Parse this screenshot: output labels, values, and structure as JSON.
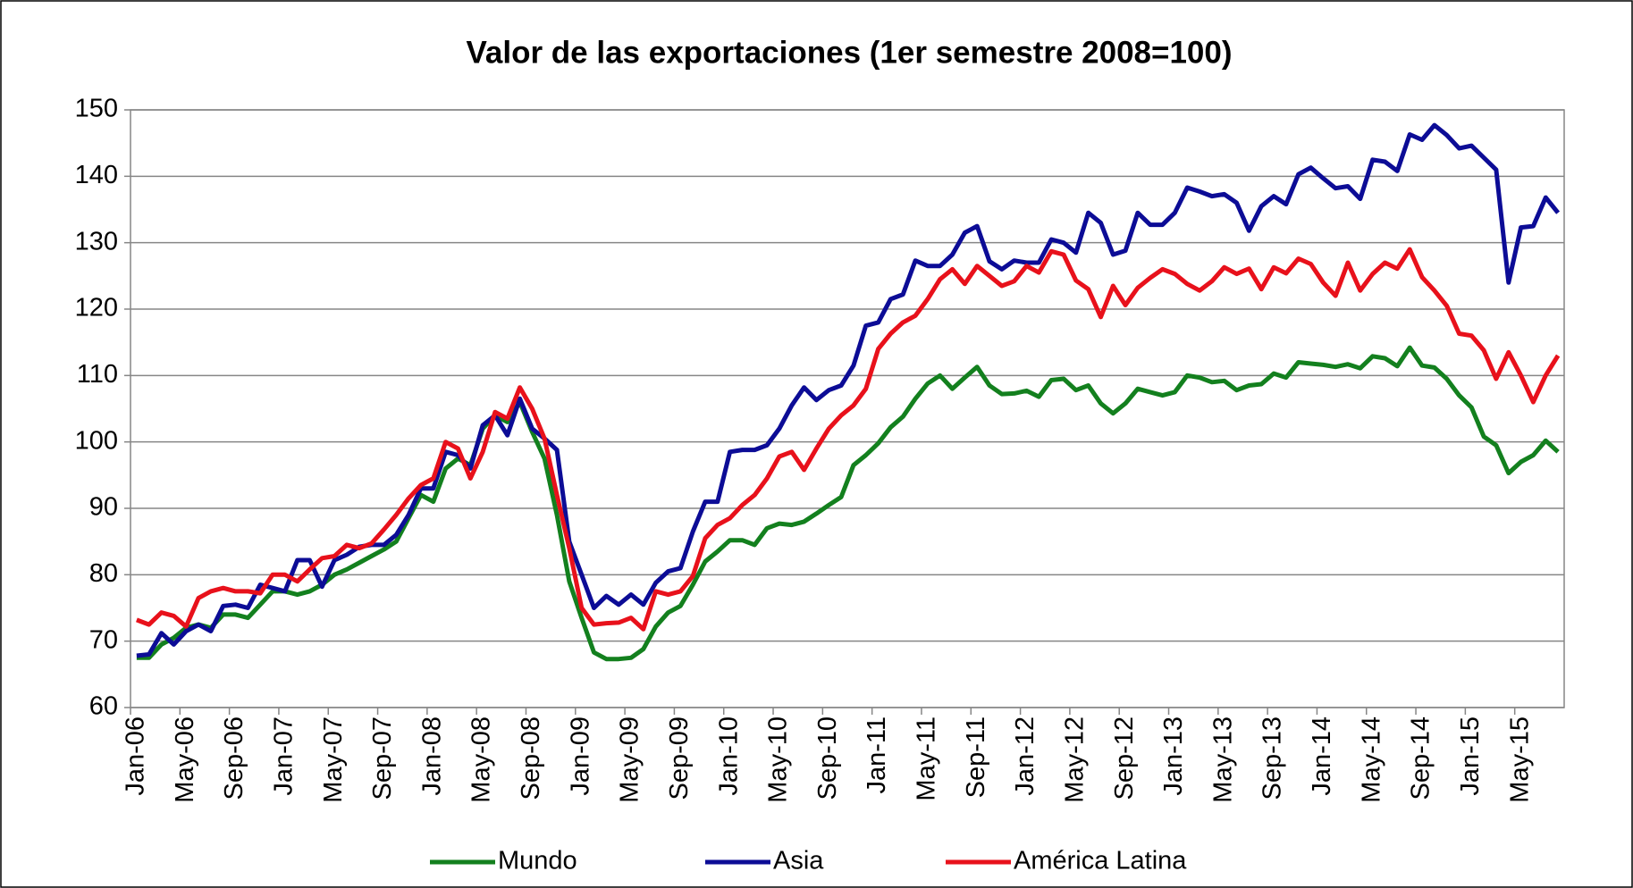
{
  "chart_data": {
    "type": "line",
    "title": "Valor de las exportaciones (1er semestre 2008=100)",
    "categories": [
      "Jan-06",
      null,
      null,
      null,
      "May-06",
      null,
      null,
      null,
      "Sep-06",
      null,
      null,
      null,
      "Jan-07",
      null,
      null,
      null,
      "May-07",
      null,
      null,
      null,
      "Sep-07",
      null,
      null,
      null,
      "Jan-08",
      null,
      null,
      null,
      "May-08",
      null,
      null,
      null,
      "Sep-08",
      null,
      null,
      null,
      "Jan-09",
      null,
      null,
      null,
      "May-09",
      null,
      null,
      null,
      "Sep-09",
      null,
      null,
      null,
      "Jan-10",
      null,
      null,
      null,
      "May-10",
      null,
      null,
      null,
      "Sep-10",
      null,
      null,
      null,
      "Jan-11",
      null,
      null,
      null,
      "May-11",
      null,
      null,
      null,
      "Sep-11",
      null,
      null,
      null,
      "Jan-12",
      null,
      null,
      null,
      "May-12",
      null,
      null,
      null,
      "Sep-12",
      null,
      null,
      null,
      "Jan-13",
      null,
      null,
      null,
      "May-13",
      null,
      null,
      null,
      "Sep-13",
      null,
      null,
      null,
      "Jan-14",
      null,
      null,
      null,
      "May-14",
      null,
      null,
      null,
      "Sep-14",
      null,
      null,
      null,
      "Jan-15",
      null,
      null,
      null,
      "May-15",
      null,
      null,
      null
    ],
    "series": [
      {
        "name": "Mundo",
        "color": "#13801e",
        "values": [
          67.5,
          67.5,
          69.5,
          70.5,
          72,
          72.5,
          72,
          74,
          74,
          73.5,
          75.5,
          77.5,
          77.5,
          77,
          77.5,
          78.5,
          80,
          80.8,
          81.8,
          82.8,
          83.8,
          85,
          88.5,
          92,
          91,
          96,
          97.5,
          96.5,
          102,
          104,
          103,
          106,
          101.5,
          97.5,
          89,
          79,
          73.5,
          68.3,
          67.3,
          67.3,
          67.5,
          68.8,
          72.2,
          74.3,
          75.3,
          78.5,
          82,
          83.5,
          85.2,
          85.2,
          84.5,
          87,
          87.7,
          87.5,
          88,
          89.2,
          90.5,
          91.7,
          96.5,
          98,
          99.8,
          102.2,
          103.8,
          106.5,
          108.8,
          110,
          108,
          109.7,
          111.3,
          108.5,
          107.2,
          107.3,
          107.7,
          106.8,
          109.3,
          109.5,
          107.8,
          108.5,
          105.8,
          104.3,
          105.8,
          108,
          107.5,
          107,
          107.5,
          110,
          109.7,
          109,
          109.2,
          107.8,
          108.5,
          108.7,
          110.3,
          109.7,
          112,
          111.8,
          111.6,
          111.3,
          111.7,
          111.1,
          112.9,
          112.6,
          111.4,
          114.2,
          111.5,
          111.2,
          109.5,
          107,
          105.2,
          100.8,
          99.5,
          95.3,
          97,
          98,
          100.2,
          98.5
        ]
      },
      {
        "name": "Asia",
        "color": "#0c0c96",
        "values": [
          67.8,
          68,
          71.2,
          69.5,
          71.5,
          72.5,
          71.5,
          75.3,
          75.5,
          75,
          78.5,
          78,
          77.5,
          82.2,
          82.2,
          78.2,
          82.2,
          83,
          84.2,
          84.5,
          84.5,
          86,
          89,
          93,
          93,
          98.5,
          98,
          96,
          102.5,
          104,
          101,
          106.5,
          102,
          100.5,
          98.8,
          85,
          80,
          75,
          76.8,
          75.5,
          77,
          75.5,
          78.8,
          80.5,
          81,
          86.5,
          91,
          91,
          98.5,
          98.8,
          98.8,
          99.5,
          102,
          105.5,
          108.2,
          106.3,
          107.8,
          108.5,
          111.5,
          117.5,
          118,
          121.5,
          122.2,
          127.3,
          126.5,
          126.5,
          128.2,
          131.5,
          132.5,
          127.2,
          126,
          127.3,
          127,
          127,
          130.5,
          130,
          128.5,
          134.5,
          133,
          128.2,
          128.8,
          134.5,
          132.7,
          132.7,
          134.5,
          138.3,
          137.7,
          137,
          137.3,
          136,
          131.8,
          135.5,
          137,
          135.8,
          140.3,
          141.3,
          139.7,
          138.2,
          138.5,
          136.6,
          142.5,
          142.2,
          140.8,
          146.3,
          145.5,
          147.7,
          146.2,
          144.2,
          144.6,
          142.8,
          141,
          124,
          132.3,
          132.5,
          136.8,
          134.5
        ]
      },
      {
        "name": "América Latina",
        "color": "#e8111b",
        "values": [
          73.2,
          72.5,
          74.3,
          73.8,
          72.2,
          76.5,
          77.5,
          78,
          77.5,
          77.5,
          77.2,
          80,
          80,
          79,
          80.8,
          82.5,
          82.8,
          84.5,
          84,
          84.7,
          86.8,
          89,
          91.5,
          93.5,
          94.5,
          100,
          99,
          94.5,
          98.5,
          104.5,
          103.5,
          108.2,
          105,
          100.5,
          92,
          84,
          75,
          72.5,
          72.7,
          72.8,
          73.5,
          71.8,
          77.5,
          77,
          77.5,
          79.8,
          85.5,
          87.5,
          88.5,
          90.5,
          92,
          94.5,
          97.8,
          98.5,
          95.8,
          99,
          102,
          104,
          105.5,
          108,
          114,
          116.3,
          118,
          119,
          121.5,
          124.5,
          126,
          123.8,
          126.5,
          125,
          123.5,
          124.2,
          126.5,
          125.5,
          128.7,
          128.2,
          124.3,
          123,
          118.8,
          123.5,
          120.6,
          123.2,
          124.7,
          126,
          125.3,
          123.8,
          122.8,
          124.2,
          126.3,
          125.3,
          126.1,
          123,
          126.3,
          125.4,
          127.6,
          126.8,
          124,
          122,
          127,
          122.8,
          125.3,
          127,
          126.1,
          129,
          124.8,
          122.8,
          120.5,
          116.3,
          116,
          113.8,
          109.5,
          113.5,
          110,
          106,
          110,
          113
        ]
      }
    ],
    "ylim": [
      60,
      150
    ],
    "yticks": [
      60,
      70,
      80,
      90,
      100,
      110,
      120,
      130,
      140,
      150
    ],
    "grid": true,
    "legend": "bottom"
  }
}
